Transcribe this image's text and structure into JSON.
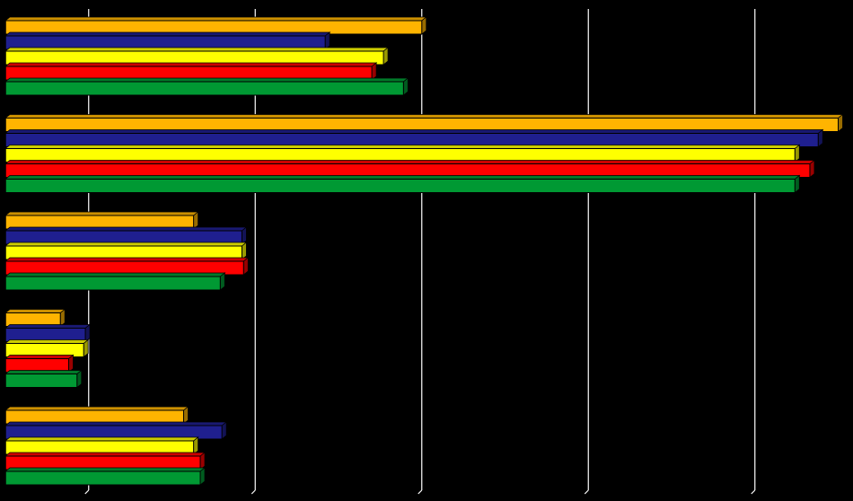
{
  "chart_data": {
    "type": "bar",
    "orientation": "horizontal",
    "style": "3d",
    "background": "#000000",
    "grid": true,
    "grid_color": "#ffffff",
    "xlim": [
      0,
      5
    ],
    "gridlines": [
      0.5,
      1.5,
      2.5,
      3.5,
      4.5
    ],
    "categories": [
      "",
      "",
      "",
      "",
      ""
    ],
    "series": [
      {
        "color": "#FFB400",
        "values": [
          2.5,
          5.0,
          1.13,
          0.33,
          1.07
        ]
      },
      {
        "color": "#1F1F8F",
        "values": [
          1.92,
          4.88,
          1.42,
          0.48,
          1.3
        ]
      },
      {
        "color": "#FFFF00",
        "values": [
          2.27,
          4.74,
          1.42,
          0.47,
          1.13
        ]
      },
      {
        "color": "#FF0000",
        "values": [
          2.2,
          4.83,
          1.43,
          0.38,
          1.17
        ]
      },
      {
        "color": "#009933",
        "values": [
          2.39,
          4.74,
          1.29,
          0.43,
          1.17
        ]
      }
    ]
  }
}
